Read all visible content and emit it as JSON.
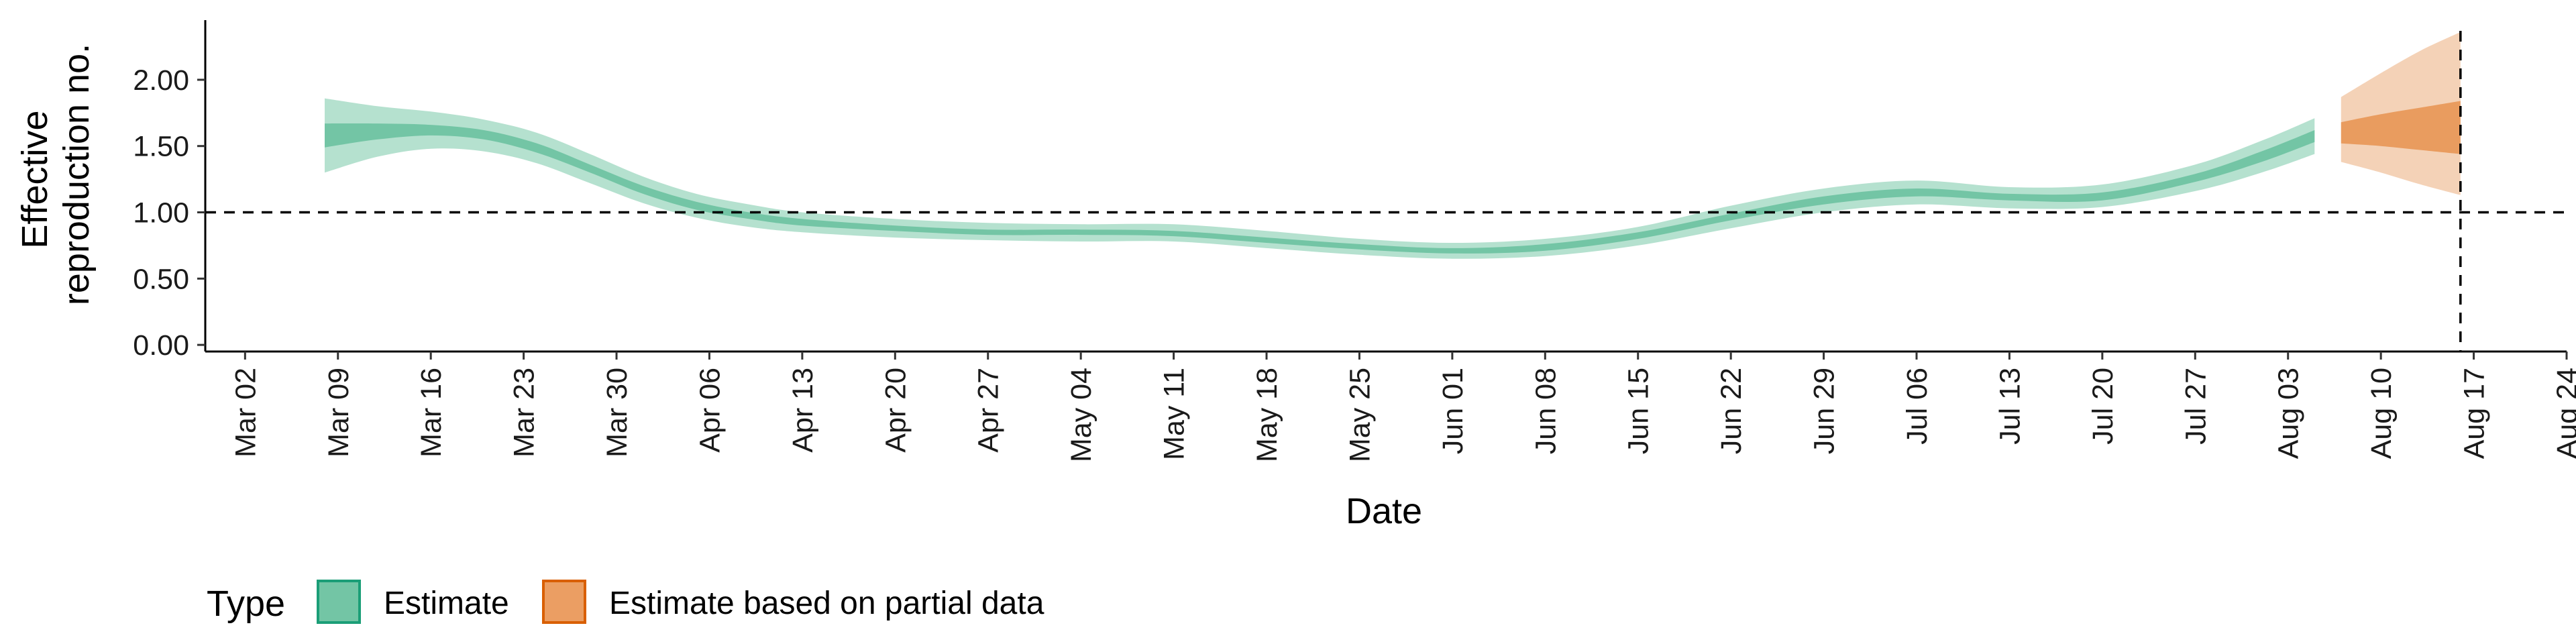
{
  "chart_data": {
    "type": "area",
    "xlabel": "Date",
    "ylabel": [
      "Effective",
      "reproduction no."
    ],
    "y_ticks": [
      "0.00",
      "0.50",
      "1.00",
      "1.50",
      "2.00"
    ],
    "y_tick_values": [
      0,
      0.5,
      1.0,
      1.5,
      2.0
    ],
    "ylim": [
      -0.05,
      2.45
    ],
    "xlim": [
      "2020-02-28",
      "2020-08-24"
    ],
    "x_ticks": [
      {
        "date": "2020-03-02",
        "label": "Mar 02"
      },
      {
        "date": "2020-03-09",
        "label": "Mar 09"
      },
      {
        "date": "2020-03-16",
        "label": "Mar 16"
      },
      {
        "date": "2020-03-23",
        "label": "Mar 23"
      },
      {
        "date": "2020-03-30",
        "label": "Mar 30"
      },
      {
        "date": "2020-04-06",
        "label": "Apr 06"
      },
      {
        "date": "2020-04-13",
        "label": "Apr 13"
      },
      {
        "date": "2020-04-20",
        "label": "Apr 20"
      },
      {
        "date": "2020-04-27",
        "label": "Apr 27"
      },
      {
        "date": "2020-05-04",
        "label": "May 04"
      },
      {
        "date": "2020-05-11",
        "label": "May 11"
      },
      {
        "date": "2020-05-18",
        "label": "May 18"
      },
      {
        "date": "2020-05-25",
        "label": "May 25"
      },
      {
        "date": "2020-06-01",
        "label": "Jun 01"
      },
      {
        "date": "2020-06-08",
        "label": "Jun 08"
      },
      {
        "date": "2020-06-15",
        "label": "Jun 15"
      },
      {
        "date": "2020-06-22",
        "label": "Jun 22"
      },
      {
        "date": "2020-06-29",
        "label": "Jun 29"
      },
      {
        "date": "2020-07-06",
        "label": "Jul 06"
      },
      {
        "date": "2020-07-13",
        "label": "Jul 13"
      },
      {
        "date": "2020-07-20",
        "label": "Jul 20"
      },
      {
        "date": "2020-07-27",
        "label": "Jul 27"
      },
      {
        "date": "2020-08-03",
        "label": "Aug 03"
      },
      {
        "date": "2020-08-10",
        "label": "Aug 10"
      },
      {
        "date": "2020-08-17",
        "label": "Aug 17"
      },
      {
        "date": "2020-08-24",
        "label": "Aug 24"
      }
    ],
    "reference_line_y": 1.0,
    "vertical_line_date": "2020-08-16",
    "grid": false,
    "legend": {
      "title": "Type",
      "position": "bottom-left",
      "entries": [
        "Estimate",
        "Estimate based on partial data"
      ]
    },
    "series": [
      {
        "name": "Estimate",
        "color": "#1b9e77",
        "points": [
          {
            "date": "2020-03-08",
            "lower90": 1.3,
            "lower50": 1.49,
            "median": 1.58,
            "upper50": 1.67,
            "upper90": 1.86
          },
          {
            "date": "2020-03-12",
            "lower90": 1.42,
            "lower50": 1.55,
            "median": 1.61,
            "upper50": 1.67,
            "upper90": 1.8
          },
          {
            "date": "2020-03-16",
            "lower90": 1.48,
            "lower50": 1.58,
            "median": 1.62,
            "upper50": 1.66,
            "upper90": 1.76
          },
          {
            "date": "2020-03-20",
            "lower90": 1.46,
            "lower50": 1.55,
            "median": 1.58,
            "upper50": 1.62,
            "upper90": 1.7
          },
          {
            "date": "2020-03-24",
            "lower90": 1.37,
            "lower50": 1.45,
            "median": 1.48,
            "upper50": 1.52,
            "upper90": 1.6
          },
          {
            "date": "2020-03-28",
            "lower90": 1.22,
            "lower50": 1.3,
            "median": 1.33,
            "upper50": 1.36,
            "upper90": 1.44
          },
          {
            "date": "2020-04-01",
            "lower90": 1.07,
            "lower50": 1.14,
            "median": 1.17,
            "upper50": 1.2,
            "upper90": 1.27
          },
          {
            "date": "2020-04-05",
            "lower90": 0.96,
            "lower50": 1.02,
            "median": 1.05,
            "upper50": 1.08,
            "upper90": 1.14
          },
          {
            "date": "2020-04-09",
            "lower90": 0.89,
            "lower50": 0.95,
            "median": 0.97,
            "upper50": 1.0,
            "upper90": 1.06
          },
          {
            "date": "2020-04-13",
            "lower90": 0.85,
            "lower50": 0.9,
            "median": 0.92,
            "upper50": 0.95,
            "upper90": 1.0
          },
          {
            "date": "2020-04-20",
            "lower90": 0.81,
            "lower50": 0.86,
            "median": 0.88,
            "upper50": 0.9,
            "upper90": 0.95
          },
          {
            "date": "2020-04-27",
            "lower90": 0.79,
            "lower50": 0.83,
            "median": 0.85,
            "upper50": 0.87,
            "upper90": 0.92
          },
          {
            "date": "2020-05-04",
            "lower90": 0.78,
            "lower50": 0.83,
            "median": 0.85,
            "upper50": 0.87,
            "upper90": 0.91
          },
          {
            "date": "2020-05-11",
            "lower90": 0.78,
            "lower50": 0.82,
            "median": 0.84,
            "upper50": 0.86,
            "upper90": 0.91
          },
          {
            "date": "2020-05-18",
            "lower90": 0.73,
            "lower50": 0.77,
            "median": 0.79,
            "upper50": 0.81,
            "upper90": 0.86
          },
          {
            "date": "2020-05-25",
            "lower90": 0.68,
            "lower50": 0.72,
            "median": 0.74,
            "upper50": 0.76,
            "upper90": 0.8
          },
          {
            "date": "2020-06-01",
            "lower90": 0.65,
            "lower50": 0.69,
            "median": 0.71,
            "upper50": 0.73,
            "upper90": 0.77
          },
          {
            "date": "2020-06-08",
            "lower90": 0.67,
            "lower50": 0.71,
            "median": 0.73,
            "upper50": 0.76,
            "upper90": 0.8
          },
          {
            "date": "2020-06-15",
            "lower90": 0.75,
            "lower50": 0.8,
            "median": 0.82,
            "upper50": 0.85,
            "upper90": 0.89
          },
          {
            "date": "2020-06-22",
            "lower90": 0.88,
            "lower50": 0.94,
            "median": 0.96,
            "upper50": 0.99,
            "upper90": 1.05
          },
          {
            "date": "2020-06-29",
            "lower90": 1.0,
            "lower50": 1.06,
            "median": 1.09,
            "upper50": 1.12,
            "upper90": 1.18
          },
          {
            "date": "2020-07-06",
            "lower90": 1.06,
            "lower50": 1.12,
            "median": 1.15,
            "upper50": 1.18,
            "upper90": 1.24
          },
          {
            "date": "2020-07-13",
            "lower90": 1.03,
            "lower50": 1.09,
            "median": 1.11,
            "upper50": 1.14,
            "upper90": 1.19
          },
          {
            "date": "2020-07-20",
            "lower90": 1.04,
            "lower50": 1.09,
            "median": 1.12,
            "upper50": 1.15,
            "upper90": 1.21
          },
          {
            "date": "2020-07-27",
            "lower90": 1.16,
            "lower50": 1.23,
            "median": 1.26,
            "upper50": 1.29,
            "upper90": 1.36
          },
          {
            "date": "2020-08-01",
            "lower90": 1.3,
            "lower50": 1.38,
            "median": 1.42,
            "upper50": 1.46,
            "upper90": 1.54
          },
          {
            "date": "2020-08-05",
            "lower90": 1.44,
            "lower50": 1.53,
            "median": 1.57,
            "upper50": 1.62,
            "upper90": 1.71
          }
        ]
      },
      {
        "name": "Estimate based on partial data",
        "color": "#d95f02",
        "points": [
          {
            "date": "2020-08-07",
            "lower90": 1.38,
            "lower50": 1.52,
            "median": 1.6,
            "upper50": 1.68,
            "upper90": 1.87
          },
          {
            "date": "2020-08-10",
            "lower90": 1.3,
            "lower50": 1.5,
            "median": 1.62,
            "upper50": 1.74,
            "upper90": 2.05
          },
          {
            "date": "2020-08-13",
            "lower90": 1.21,
            "lower50": 1.47,
            "median": 1.63,
            "upper50": 1.79,
            "upper90": 2.22
          },
          {
            "date": "2020-08-16",
            "lower90": 1.13,
            "lower50": 1.44,
            "median": 1.64,
            "upper50": 1.84,
            "upper90": 2.36
          }
        ]
      }
    ]
  }
}
